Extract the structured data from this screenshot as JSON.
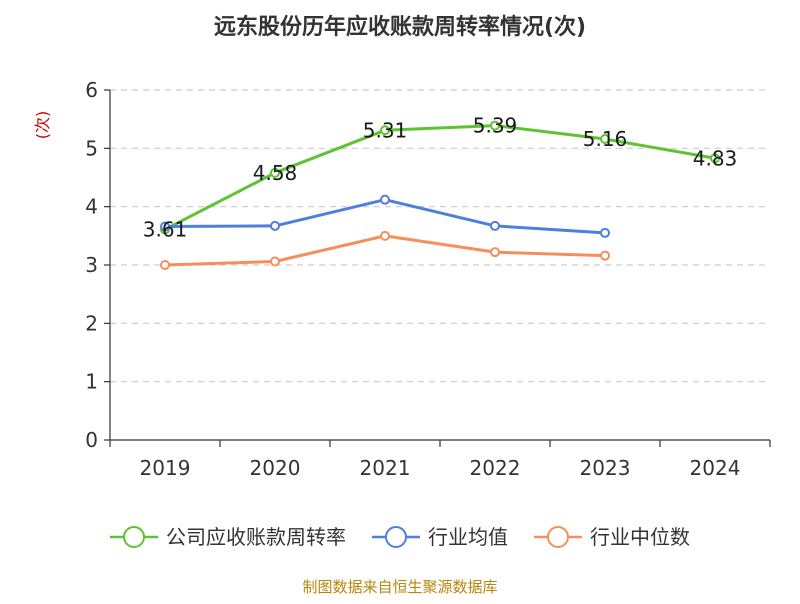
{
  "chart_data": {
    "type": "line",
    "title": "远东股份历年应收账款周转率情况(次)",
    "ylabel": "(次)",
    "xlabel": "",
    "categories": [
      "2019",
      "2020",
      "2021",
      "2022",
      "2023",
      "2024"
    ],
    "yticks": [
      "0",
      "1",
      "2",
      "3",
      "4",
      "5",
      "6"
    ],
    "ylim": [
      0,
      6
    ],
    "grid": true,
    "legend_position": "bottom",
    "series": [
      {
        "name": "公司应收账款周转率",
        "color": "#5fc233",
        "values": [
          3.61,
          4.58,
          5.31,
          5.39,
          5.16,
          4.83
        ],
        "labels": [
          "3.61",
          "4.58",
          "5.31",
          "5.39",
          "5.16",
          "4.83"
        ],
        "show_labels": true
      },
      {
        "name": "行业均值",
        "color": "#4f7fdc",
        "values": [
          3.66,
          3.67,
          4.12,
          3.67,
          3.55,
          null
        ],
        "show_labels": false
      },
      {
        "name": "行业中位数",
        "color": "#f48f5c",
        "values": [
          3.0,
          3.06,
          3.5,
          3.22,
          3.16,
          null
        ],
        "show_labels": false
      }
    ],
    "source": "制图数据来自恒生聚源数据库",
    "ylabel_color": "#cc0000",
    "source_color": "#b8860b",
    "grid_color": "#cccccc",
    "axis_color": "#333333"
  }
}
